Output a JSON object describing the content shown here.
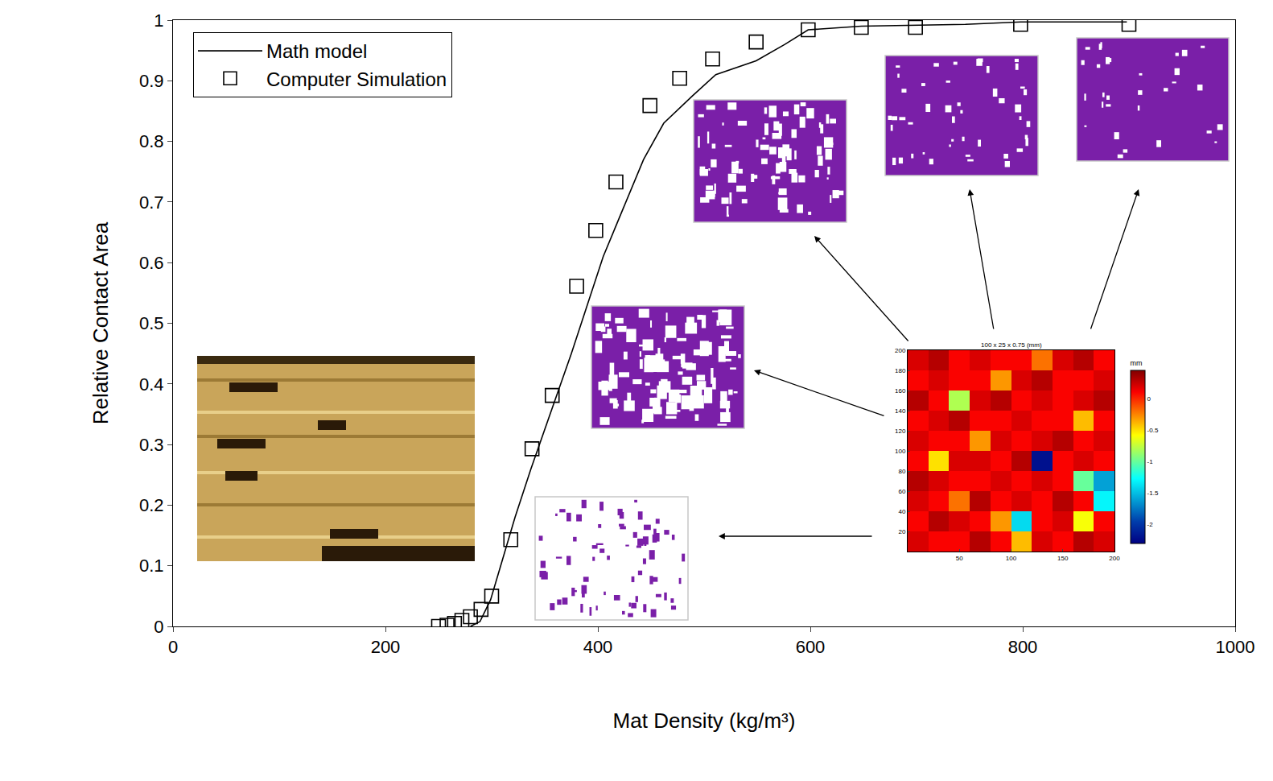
{
  "chart_data": [
    {
      "type": "line",
      "xlabel": "Mat Density (kg/m³)",
      "ylabel": "Relative Contact Area",
      "xlim": [
        0,
        1000
      ],
      "ylim": [
        0,
        1
      ],
      "xticks": [
        0,
        200,
        400,
        600,
        800,
        1000
      ],
      "yticks": [
        0,
        0.1,
        0.2,
        0.3,
        0.4,
        0.5,
        0.6,
        0.7,
        0.8,
        0.9,
        1
      ],
      "grid": false,
      "legend": "upper left",
      "series": [
        {
          "name": "Math model",
          "type": "line",
          "line_style": "solid",
          "color": "#000000",
          "x": [
            280,
            289,
            299,
            308,
            322,
            337,
            356,
            375,
            390,
            405,
            424,
            443,
            462,
            489,
            511,
            549,
            576,
            598,
            648,
            746,
            798,
            898
          ],
          "values": [
            0,
            0.008,
            0.044,
            0.097,
            0.18,
            0.26,
            0.356,
            0.45,
            0.53,
            0.61,
            0.69,
            0.77,
            0.83,
            0.875,
            0.91,
            0.933,
            0.96,
            0.984,
            0.99,
            0.993,
            0.997,
            0.997
          ]
        },
        {
          "name": "Computer Simulation",
          "type": "scatter",
          "marker": "square-open",
          "color": "#000000",
          "x": [
            250,
            258,
            265,
            272,
            280,
            290,
            300,
            318,
            338,
            357,
            380,
            398,
            417,
            449,
            477,
            508,
            549,
            598,
            648,
            699,
            798,
            900
          ],
          "values": [
            0,
            0.002,
            0.005,
            0.01,
            0.016,
            0.028,
            0.05,
            0.143,
            0.293,
            0.381,
            0.561,
            0.653,
            0.733,
            0.859,
            0.904,
            0.936,
            0.964,
            0.984,
            0.988,
            0.988,
            0.993,
            0.993
          ]
        }
      ]
    },
    {
      "type": "heatmap",
      "title": "100 x 25 x 0.75 (mm)",
      "x": [
        10,
        30,
        50,
        70,
        90,
        110,
        130,
        150,
        170,
        190
      ],
      "y": [
        10,
        30,
        50,
        70,
        90,
        110,
        130,
        150,
        170,
        190
      ],
      "cells": [
        [
          0.2,
          0.1,
          0.1,
          0.3,
          0.1,
          -0.4,
          0.2,
          0.1,
          0.3,
          0.2
        ],
        [
          0.1,
          0.3,
          0.2,
          0.1,
          -0.3,
          -1.4,
          0.1,
          0.2,
          -0.6,
          0.1
        ],
        [
          0.2,
          0.1,
          -0.2,
          0.3,
          0.1,
          0.2,
          0.1,
          0.3,
          0.1,
          -1.3
        ],
        [
          0.3,
          0.2,
          0.1,
          0.1,
          0.2,
          0.1,
          0.2,
          0.1,
          -1.0,
          -1.6
        ],
        [
          0.1,
          -0.5,
          0.2,
          0.2,
          0.1,
          0.3,
          -2.2,
          0.1,
          0.2,
          0.1
        ],
        [
          0.2,
          0.1,
          0.1,
          -0.3,
          0.2,
          0.1,
          0.2,
          0.3,
          0.1,
          0.2
        ],
        [
          0.1,
          0.2,
          0.3,
          0.1,
          0.1,
          0.2,
          0.1,
          0.1,
          -0.4,
          0.1
        ],
        [
          0.3,
          0.1,
          -0.8,
          0.2,
          0.3,
          0.1,
          0.2,
          0.1,
          0.2,
          0.3
        ],
        [
          0.1,
          0.2,
          0.1,
          0.1,
          -0.3,
          0.2,
          0.3,
          0.1,
          0.1,
          0.2
        ],
        [
          0.2,
          0.3,
          0.1,
          0.2,
          0.1,
          0.1,
          -0.2,
          0.2,
          0.3,
          0.1
        ]
      ],
      "xlim": [
        0,
        200
      ],
      "ylim": [
        0,
        200
      ],
      "xticks": [
        50,
        100,
        150,
        200
      ],
      "yticks": [
        20,
        40,
        60,
        80,
        100,
        120,
        140,
        160,
        180,
        200
      ],
      "colorbar_title": "mm",
      "colorbar_range": [
        -2.3,
        0.45
      ],
      "colorbar_ticks": [
        0,
        -0.5,
        -1,
        -1.5,
        -2
      ]
    }
  ]
}
